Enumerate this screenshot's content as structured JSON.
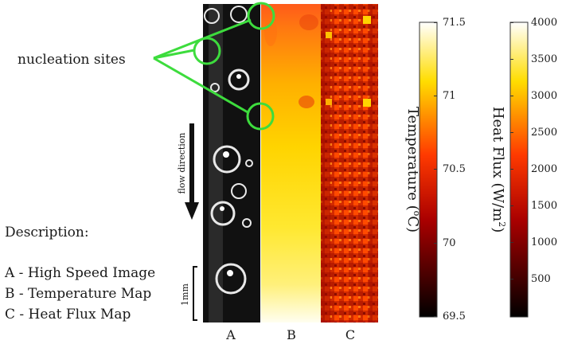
{
  "annotation": {
    "nucleation_label": "nucleation sites",
    "flow_label": "flow direction",
    "scale_label": "1mm"
  },
  "panels": {
    "a": "A",
    "b": "B",
    "c": "C"
  },
  "description": {
    "heading": "Description:",
    "items": [
      "A - High Speed Image",
      "B - Temperature Map",
      "C - Heat Flux Map"
    ]
  },
  "colorbars": {
    "temperature": {
      "title": "Temperature (",
      "unit_sup": "o",
      "unit_tail": "C)",
      "ticks": [
        "71.5",
        "71",
        "70.5",
        "70",
        "69.5"
      ]
    },
    "heat_flux": {
      "title": "Heat Flux (W/m",
      "unit_sup": "2",
      "unit_tail": ")",
      "ticks": [
        "4000",
        "3500",
        "3000",
        "2500",
        "2000",
        "1500",
        "1000",
        "500"
      ]
    }
  },
  "colors": {
    "annotation": "#3ddc3d",
    "colormap": [
      "#000000",
      "#8b0000",
      "#ff2a00",
      "#ffd400",
      "#ffffff"
    ]
  }
}
